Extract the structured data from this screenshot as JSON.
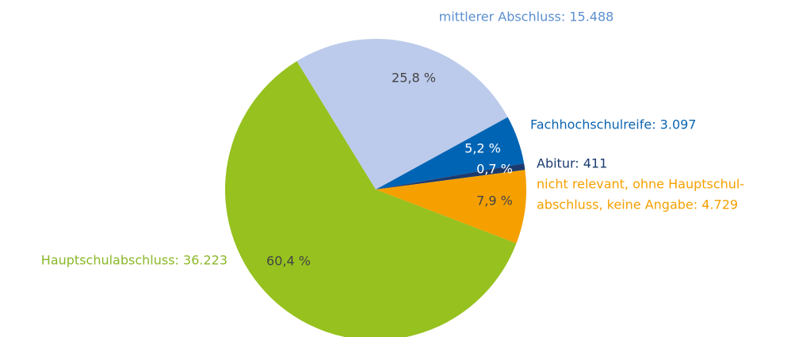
{
  "chart_data": {
    "type": "pie",
    "categories": [
      [
        "mittlerer Abschluss: 15.488"
      ],
      [
        "Fachhochschulreife: 3.097"
      ],
      [
        "Abitur: 411"
      ],
      [
        "nicht relevant, ohne Hauptschul-",
        "abschluss, keine Angabe: 4.729"
      ],
      [
        "Hauptschulabschluss: 36.223"
      ]
    ],
    "values": [
      25.8,
      5.2,
      0.7,
      7.9,
      60.4
    ],
    "value_labels": [
      "25,8 %",
      "5,2 %",
      "0,7 %",
      "7,9 %",
      "60,4 %"
    ],
    "colors": [
      "#bccbeb",
      "#0064b4",
      "#1b3b6f",
      "#f5a000",
      "#96c11f"
    ],
    "label_colors": [
      "#5b8fd0",
      "#0a64b0",
      "#1b3b6f",
      "#f5a000",
      "#8ab828"
    ]
  }
}
